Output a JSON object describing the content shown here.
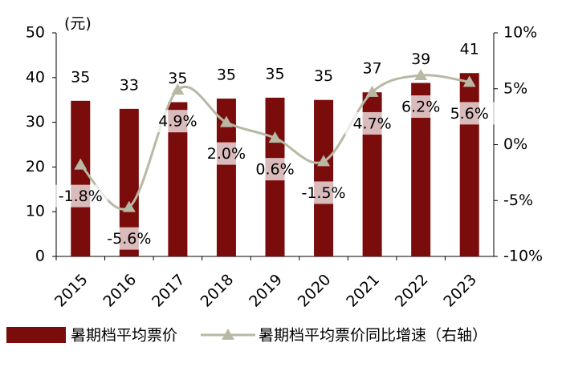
{
  "chart_data": {
    "type": "bar-line",
    "ylabel": "(元)",
    "categories": [
      "2015",
      "2016",
      "2017",
      "2018",
      "2019",
      "2020",
      "2021",
      "2022",
      "2023"
    ],
    "series": [
      {
        "name": "暑期档平均票价",
        "type": "bar",
        "color": "#7b0c0c",
        "values": [
          34.8,
          33.0,
          34.5,
          35.3,
          35.5,
          35.0,
          36.7,
          38.8,
          41.0
        ],
        "value_labels": [
          "35",
          "33",
          "35",
          "35",
          "35",
          "35",
          "37",
          "39",
          "41"
        ]
      },
      {
        "name": "暑期档平均票价同比增速（右轴）",
        "type": "line",
        "axis": "y2",
        "color": "#b8b8a4",
        "values": [
          -1.8,
          -5.6,
          4.9,
          2.0,
          0.6,
          -1.5,
          4.7,
          6.2,
          5.6
        ],
        "value_labels": [
          "-1.8%",
          "-5.6%",
          "4.9%",
          "2.0%",
          "0.6%",
          "-1.5%",
          "4.7%",
          "6.2%",
          "5.6%"
        ]
      }
    ],
    "ylim": [
      0,
      50
    ],
    "yticks": [
      0,
      10,
      20,
      30,
      40,
      50
    ],
    "y2lim": [
      -10,
      10
    ],
    "y2ticks": [
      {
        "value": -10,
        "label": "-10%"
      },
      {
        "value": -5,
        "label": "-5%"
      },
      {
        "value": 0,
        "label": "0%"
      },
      {
        "value": 5,
        "label": "5%"
      },
      {
        "value": 10,
        "label": "10%"
      }
    ]
  }
}
